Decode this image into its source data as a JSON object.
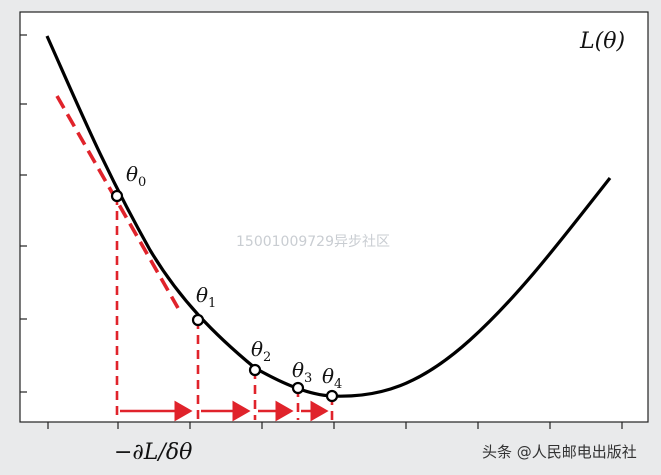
{
  "curve_label": "L(θ)",
  "gradient_label": "−∂L/δθ",
  "points": [
    {
      "name": "θ",
      "sub": "0"
    },
    {
      "name": "θ",
      "sub": "1"
    },
    {
      "name": "θ",
      "sub": "2"
    },
    {
      "name": "θ",
      "sub": "3"
    },
    {
      "name": "θ",
      "sub": "4"
    }
  ],
  "watermark": "15001009729异步社区",
  "credit": "头条 @人民邮电出版社",
  "colors": {
    "background": "#e9eaeb",
    "panel": "#ffffff",
    "curve": "#000000",
    "accent": "#e0232b"
  }
}
